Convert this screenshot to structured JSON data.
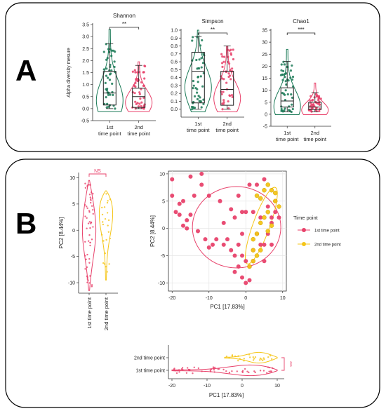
{
  "panels": {
    "A": {
      "label": "A"
    },
    "B": {
      "label": "B"
    }
  },
  "colors": {
    "first": "#1b7a57",
    "second": "#e8426b",
    "first_b": "#e8426b",
    "second_b": "#f5c518",
    "bracket": "#000000",
    "ns": "#e8426b"
  },
  "chart_data": [
    {
      "type": "violin-box",
      "title": "Shannon",
      "ylabel": "Alpha diversity mesure",
      "categories": [
        "1st\ntime point",
        "2nd\ntime point"
      ],
      "ylim": [
        -0.5,
        3.5
      ],
      "yticks": [
        "-0.5",
        "0.0",
        "0.5",
        "1.0",
        "1.5",
        "2.0",
        "2.5",
        "3.0",
        "3.5"
      ],
      "significance": "**",
      "series": [
        {
          "name": "1st time point",
          "min": 0.0,
          "q1": 0.15,
          "median": 0.65,
          "q3": 1.55,
          "max": 2.7,
          "violin_max": 3.3
        },
        {
          "name": "2nd time point",
          "min": 0.0,
          "q1": 0.05,
          "median": 0.5,
          "q3": 0.85,
          "max": 1.8,
          "violin_max": 1.95
        }
      ]
    },
    {
      "type": "violin-box",
      "title": "Simpson",
      "ylabel": "",
      "categories": [
        "1st\ntime point",
        "2nd\ntime point"
      ],
      "ylim": [
        -0.1,
        1.0
      ],
      "yticks": [
        "0.0",
        "0.1",
        "0.2",
        "0.3",
        "0.4",
        "0.5",
        "0.6",
        "0.7",
        "0.8",
        "0.9",
        "1.0"
      ],
      "significance": "**",
      "series": [
        {
          "name": "1st time point",
          "min": 0.0,
          "q1": 0.08,
          "median": 0.48,
          "q3": 0.72,
          "max": 0.92,
          "violin_max": 1.0
        },
        {
          "name": "2nd time point",
          "min": 0.0,
          "q1": 0.05,
          "median": 0.25,
          "q3": 0.48,
          "max": 0.8,
          "violin_max": 0.8
        }
      ]
    },
    {
      "type": "violin-box",
      "title": "Chao1",
      "ylabel": "",
      "categories": [
        "1st\ntime point",
        "2nd\ntime point"
      ],
      "ylim": [
        -5,
        35
      ],
      "yticks": [
        "-5",
        "0",
        "5",
        "10",
        "15",
        "20",
        "25",
        "30",
        "35"
      ],
      "significance": "***",
      "series": [
        {
          "name": "1st time point",
          "min": 1.0,
          "q1": 3.0,
          "median": 5.5,
          "q3": 11.0,
          "max": 22.0,
          "violin_max": 27.0
        },
        {
          "name": "2nd time point",
          "min": 1.0,
          "q1": 2.0,
          "median": 3.0,
          "q3": 5.0,
          "max": 9.0,
          "violin_max": 13.0
        }
      ]
    },
    {
      "type": "violin",
      "title": "",
      "ylabel": "PC2 [8.44%]",
      "categories": [
        "1st time point",
        "2nd time point"
      ],
      "ylim": [
        -12,
        11
      ],
      "yticks": [
        "-10",
        "-5",
        "0",
        "5",
        "10"
      ],
      "significance": "NS"
    },
    {
      "type": "scatter",
      "title": "",
      "xlabel": "PC1 [17.83%]",
      "ylabel": "PC2 [8.44%]",
      "xlim": [
        -21,
        11
      ],
      "ylim": [
        -11.5,
        10.5
      ],
      "xticks": [
        "-20",
        "-10",
        "0",
        "10"
      ],
      "yticks": [
        "-10",
        "-5",
        "0",
        "5",
        "10"
      ],
      "legend": {
        "title": "Time point",
        "position": "right"
      },
      "grid": true,
      "series": [
        {
          "name": "1st time point",
          "points": [
            [
              -20,
              9
            ],
            [
              -15,
              9.5
            ],
            [
              -12,
              10
            ],
            [
              -20,
              6
            ],
            [
              -18,
              4.5
            ],
            [
              -17,
              5
            ],
            [
              -14,
              6
            ],
            [
              -19,
              3
            ],
            [
              -18,
              2.5
            ],
            [
              -17,
              0.5
            ],
            [
              -16,
              0
            ],
            [
              -16,
              1.5
            ],
            [
              -15,
              2.5
            ],
            [
              -12,
              8
            ],
            [
              -10,
              6
            ],
            [
              -13,
              -0.5
            ],
            [
              -11,
              -2
            ],
            [
              -10,
              -3.5
            ],
            [
              -8,
              -2
            ],
            [
              -7,
              5
            ],
            [
              -6,
              -3
            ],
            [
              -4,
              -4
            ],
            [
              -3,
              -5
            ],
            [
              -3,
              -8
            ],
            [
              -2,
              -3
            ],
            [
              -1,
              -1
            ],
            [
              -1,
              -5
            ],
            [
              -1,
              -9
            ],
            [
              0,
              -6
            ],
            [
              0,
              -10
            ],
            [
              1,
              -9.5
            ],
            [
              1,
              -7
            ],
            [
              2,
              -4
            ],
            [
              3,
              -1
            ],
            [
              4,
              -3
            ],
            [
              5,
              -3
            ],
            [
              6,
              -1
            ],
            [
              7,
              1
            ],
            [
              7,
              2
            ],
            [
              7,
              -3
            ],
            [
              8,
              3
            ],
            [
              9,
              2
            ],
            [
              -5,
              -2
            ],
            [
              -2,
              6
            ],
            [
              -4,
              3.5
            ],
            [
              -6,
              1
            ],
            [
              1,
              8
            ],
            [
              3,
              8
            ],
            [
              5,
              9
            ],
            [
              8,
              5
            ],
            [
              0,
              3
            ],
            [
              -3,
              2
            ],
            [
              -9,
              -3
            ],
            [
              -1,
              3
            ],
            [
              2,
              3
            ],
            [
              4,
              2
            ],
            [
              6,
              4
            ],
            [
              5,
              -6
            ],
            [
              2,
              -6
            ],
            [
              -2,
              -7
            ]
          ]
        },
        {
          "name": "2nd time point",
          "points": [
            [
              3,
              6
            ],
            [
              4,
              5.5
            ],
            [
              5,
              7
            ],
            [
              6,
              8
            ],
            [
              7,
              7
            ],
            [
              8,
              6.5
            ],
            [
              6,
              3
            ],
            [
              5,
              2
            ],
            [
              4,
              1
            ],
            [
              3,
              -1
            ],
            [
              2,
              -2
            ],
            [
              2,
              -4
            ],
            [
              3,
              -5
            ],
            [
              2,
              -6
            ],
            [
              1,
              -7
            ],
            [
              4,
              -4
            ],
            [
              6,
              -0.5
            ],
            [
              7,
              0.5
            ],
            [
              8,
              5
            ],
            [
              9,
              4
            ]
          ]
        }
      ]
    },
    {
      "type": "violin",
      "title": "",
      "xlabel": "PC1 [17.83%]",
      "categories": [
        "2nd time point",
        "1st time point"
      ],
      "xlim": [
        -21,
        12
      ],
      "xticks": [
        "-20",
        "-10",
        "0",
        "10"
      ],
      "significance": "***"
    }
  ]
}
